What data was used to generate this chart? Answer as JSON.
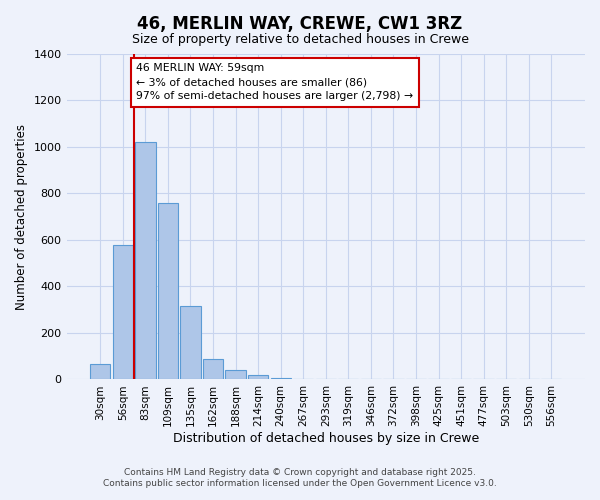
{
  "title": "46, MERLIN WAY, CREWE, CW1 3RZ",
  "subtitle": "Size of property relative to detached houses in Crewe",
  "xlabel": "Distribution of detached houses by size in Crewe",
  "ylabel": "Number of detached properties",
  "bin_labels": [
    "30sqm",
    "56sqm",
    "83sqm",
    "109sqm",
    "135sqm",
    "162sqm",
    "188sqm",
    "214sqm",
    "240sqm",
    "267sqm",
    "293sqm",
    "319sqm",
    "346sqm",
    "372sqm",
    "398sqm",
    "425sqm",
    "451sqm",
    "477sqm",
    "503sqm",
    "530sqm",
    "556sqm"
  ],
  "bar_values": [
    65,
    580,
    1020,
    760,
    315,
    90,
    40,
    20,
    5,
    2,
    1,
    0,
    0,
    0,
    0,
    0,
    0,
    0,
    0,
    0,
    0
  ],
  "bar_color": "#aec6e8",
  "bar_edge_color": "#5b9bd5",
  "background_color": "#eef2fb",
  "grid_color": "#c8d4ee",
  "vline_color": "#cc0000",
  "annotation_text": "46 MERLIN WAY: 59sqm\n← 3% of detached houses are smaller (86)\n97% of semi-detached houses are larger (2,798) →",
  "annotation_box_color": "#ffffff",
  "annotation_box_edge": "#cc0000",
  "ylim": [
    0,
    1400
  ],
  "yticks": [
    0,
    200,
    400,
    600,
    800,
    1000,
    1200,
    1400
  ],
  "footer_line1": "Contains HM Land Registry data © Crown copyright and database right 2025.",
  "footer_line2": "Contains public sector information licensed under the Open Government Licence v3.0."
}
